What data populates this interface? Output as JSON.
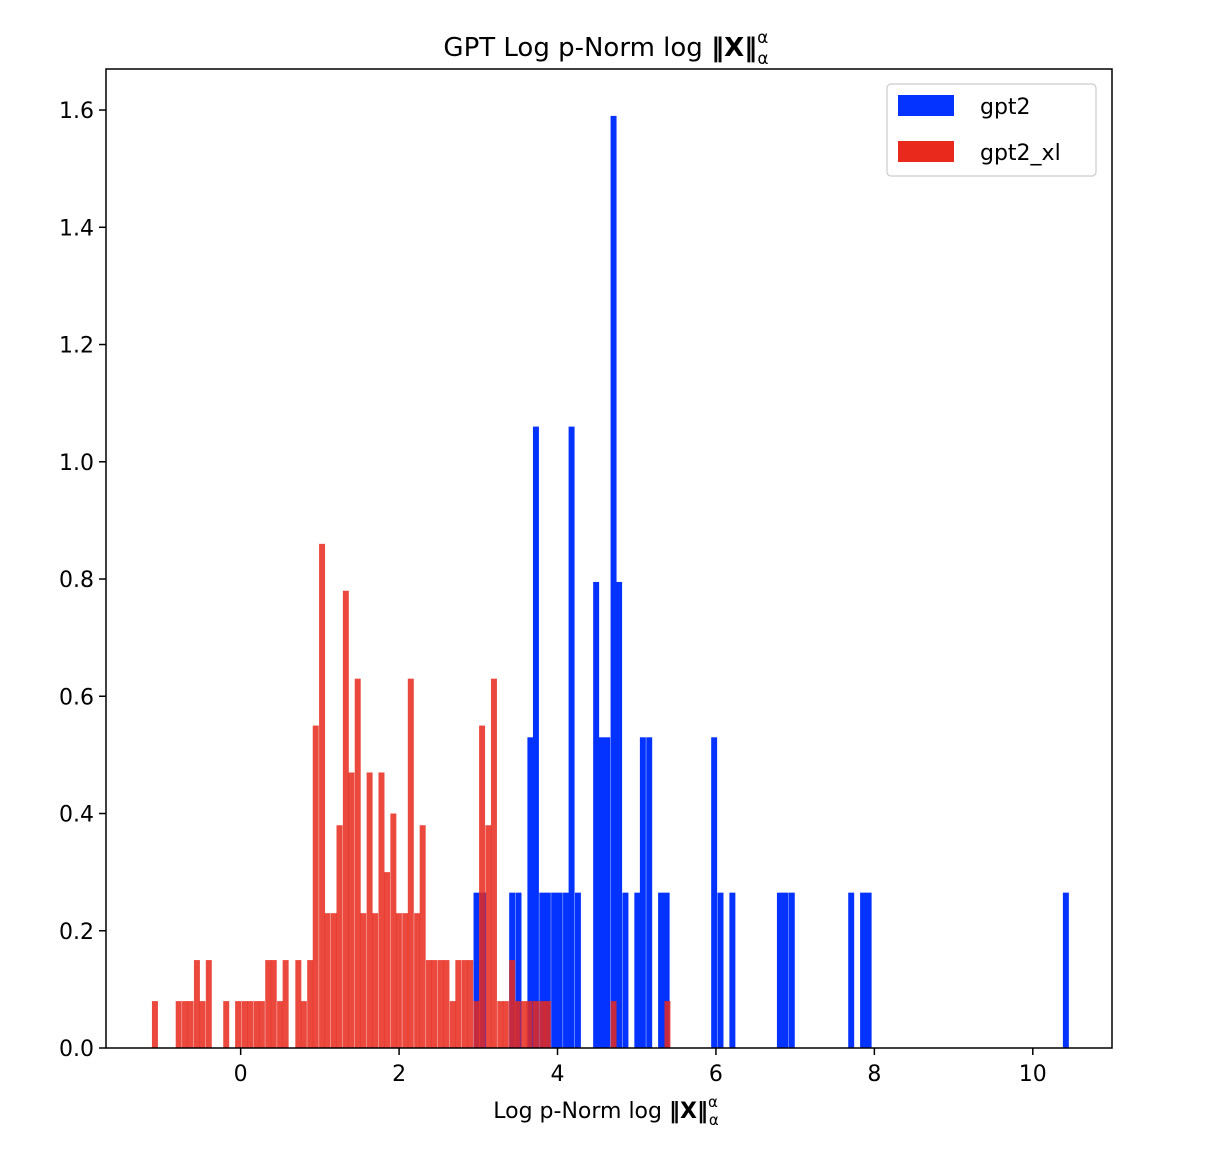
{
  "chart_data": {
    "type": "bar",
    "title": {
      "main": "GPT Log p-Norm log ",
      "norm": "‖X‖",
      "sup": "α",
      "sub": "α"
    },
    "xlabel": {
      "main": "Log p-Norm log ",
      "norm": "‖X‖",
      "sup": "α",
      "sub": "α"
    },
    "ylabel": "",
    "xlim": [
      -1.7,
      11.0
    ],
    "ylim": [
      0.0,
      1.67
    ],
    "xticks": [
      0,
      2,
      4,
      6,
      8,
      10
    ],
    "yticks": [
      0.0,
      0.2,
      0.4,
      0.6,
      0.8,
      1.0,
      1.2,
      1.4,
      1.6
    ],
    "ytick_labels": [
      "0.0",
      "0.2",
      "0.4",
      "0.6",
      "0.8",
      "1.0",
      "1.2",
      "1.4",
      "1.6"
    ],
    "legend_position": "top-right",
    "series": [
      {
        "name": "gpt2",
        "color": "#0433ff",
        "bin_width": 0.0753,
        "x": [
          2.94,
          3.02,
          3.39,
          3.47,
          3.62,
          3.69,
          3.77,
          3.84,
          3.92,
          3.99,
          4.07,
          4.14,
          4.22,
          4.45,
          4.52,
          4.59,
          4.67,
          4.74,
          4.82,
          4.97,
          5.04,
          5.12,
          5.27,
          5.34,
          5.94,
          6.02,
          6.17,
          6.77,
          6.84,
          6.92,
          7.67,
          7.82,
          7.89,
          10.38
        ],
        "values": [
          0.265,
          0.265,
          0.265,
          0.265,
          0.53,
          1.06,
          0.265,
          0.265,
          0.265,
          0.265,
          0.265,
          1.06,
          0.265,
          0.795,
          0.53,
          0.53,
          1.59,
          0.795,
          0.265,
          0.265,
          0.53,
          0.53,
          0.265,
          0.265,
          0.53,
          0.265,
          0.265,
          0.265,
          0.265,
          0.265,
          0.265,
          0.265,
          0.265,
          0.265
        ]
      },
      {
        "name": "gpt2_xl",
        "color": "#e8291c",
        "bin_width": 0.0755,
        "x": [
          -1.12,
          -0.82,
          -0.74,
          -0.67,
          -0.59,
          -0.52,
          -0.44,
          -0.22,
          -0.07,
          0.01,
          0.08,
          0.16,
          0.23,
          0.31,
          0.38,
          0.46,
          0.53,
          0.69,
          0.76,
          0.84,
          0.91,
          0.99,
          1.06,
          1.14,
          1.21,
          1.29,
          1.36,
          1.44,
          1.51,
          1.59,
          1.66,
          1.74,
          1.81,
          1.89,
          1.96,
          2.04,
          2.11,
          2.19,
          2.26,
          2.34,
          2.41,
          2.49,
          2.56,
          2.64,
          2.71,
          2.79,
          2.86,
          2.94,
          3.01,
          3.09,
          3.16,
          3.24,
          3.31,
          3.39,
          3.46,
          3.54,
          3.61,
          3.69,
          3.77,
          3.84,
          4.67,
          5.35
        ],
        "values": [
          0.08,
          0.08,
          0.08,
          0.08,
          0.15,
          0.08,
          0.15,
          0.08,
          0.08,
          0.08,
          0.08,
          0.08,
          0.08,
          0.15,
          0.15,
          0.08,
          0.15,
          0.15,
          0.08,
          0.15,
          0.55,
          0.86,
          0.23,
          0.23,
          0.38,
          0.78,
          0.47,
          0.63,
          0.23,
          0.47,
          0.23,
          0.47,
          0.3,
          0.4,
          0.23,
          0.23,
          0.63,
          0.23,
          0.38,
          0.15,
          0.15,
          0.15,
          0.15,
          0.08,
          0.15,
          0.15,
          0.15,
          0.08,
          0.55,
          0.38,
          0.63,
          0.08,
          0.08,
          0.15,
          0.08,
          0.08,
          0.08,
          0.08,
          0.08,
          0.08,
          0.08,
          0.08
        ]
      }
    ]
  }
}
